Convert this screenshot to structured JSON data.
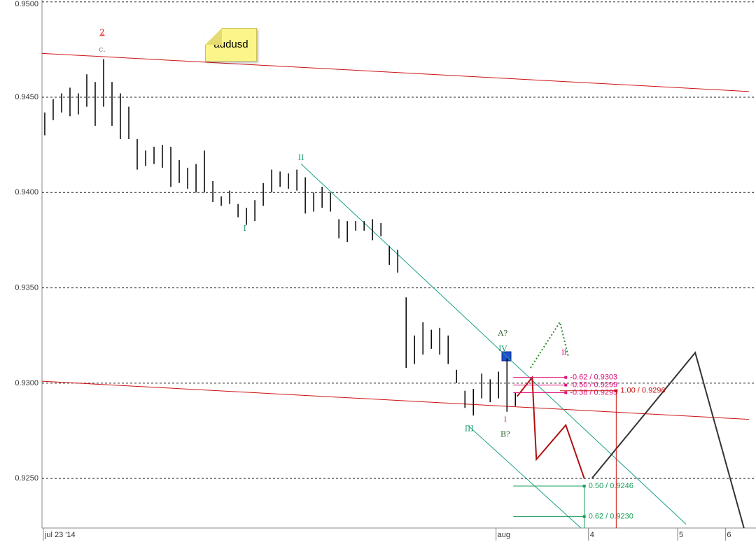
{
  "chart_data": {
    "type": "ohlc",
    "symbol": "audusd",
    "bar_color": "#000000",
    "high": [
      0.9442,
      0.9449,
      0.9452,
      0.9455,
      0.9452,
      0.9462,
      0.9458,
      0.947,
      0.9458,
      0.9452,
      0.9445,
      0.9428,
      0.9422,
      0.9424,
      0.9425,
      0.9424,
      0.9417,
      0.9413,
      0.9415,
      0.9422,
      0.9406,
      0.9398,
      0.9401,
      0.9394,
      0.9392,
      0.9396,
      0.9405,
      0.9412,
      0.9411,
      0.941,
      0.9412,
      0.9408,
      0.94,
      0.9403,
      0.94,
      0.9386,
      0.9385,
      0.9385,
      0.9385,
      0.9386,
      0.9384,
      0.9372,
      0.937,
      0.9345,
      0.9325,
      0.9332,
      0.9328,
      0.9329,
      0.9325,
      0.9307,
      0.9296,
      0.9297,
      0.9305,
      0.9302,
      0.9306,
      0.9313,
      0.9295
    ],
    "low": [
      0.943,
      0.9438,
      0.9442,
      0.944,
      0.9441,
      0.9445,
      0.9435,
      0.9445,
      0.9435,
      0.9428,
      0.9428,
      0.9412,
      0.9414,
      0.9415,
      0.9413,
      0.9403,
      0.9405,
      0.9402,
      0.94,
      0.94,
      0.9395,
      0.9393,
      0.9394,
      0.9387,
      0.9383,
      0.9385,
      0.9393,
      0.94,
      0.9403,
      0.9402,
      0.9401,
      0.9389,
      0.939,
      0.9392,
      0.939,
      0.9376,
      0.9374,
      0.938,
      0.938,
      0.9375,
      0.9377,
      0.9362,
      0.9358,
      0.9308,
      0.931,
      0.9315,
      0.9318,
      0.9315,
      0.931,
      0.93,
      0.9287,
      0.9283,
      0.9292,
      0.929,
      0.9292,
      0.9285,
      0.9288
    ],
    "xlim": [
      -0.33,
      83.8
    ],
    "xticks": [
      {
        "value": -0.17,
        "label": "jul 23 '14"
      },
      {
        "value": 53.7,
        "label": "aug"
      },
      {
        "value": 64.7,
        "label": "4"
      },
      {
        "value": 75.3,
        "label": "5"
      },
      {
        "value": 81,
        "label": "6"
      }
    ],
    "ylim": [
      0.9224,
      0.9501
    ],
    "yticks": [
      {
        "value": 0.925,
        "label": "0.9250"
      },
      {
        "value": 0.93,
        "label": "0.9300"
      },
      {
        "value": 0.935,
        "label": "0.9350"
      },
      {
        "value": 0.94,
        "label": "0.9400"
      },
      {
        "value": 0.945,
        "label": "0.9450"
      },
      {
        "value": 0.95,
        "label": "0.9500"
      }
    ],
    "grid": true,
    "lines": [
      {
        "color": "#cc1111",
        "x": [
          -0.33,
          83.8
        ],
        "y": [
          0.9473,
          0.9453
        ]
      },
      {
        "color": "#cc1111",
        "x": [
          -0.33,
          83.8
        ],
        "y": [
          0.9301,
          0.9281
        ]
      },
      {
        "color": "#1a9e8a",
        "x": [
          30.5,
          76.3
        ],
        "y": [
          0.9415,
          0.9226
        ]
      },
      {
        "color": "#1a9e8a",
        "x": [
          50.3,
          63.8
        ],
        "y": [
          0.9278,
          0.9224
        ]
      },
      {
        "color": "#b01010",
        "width": 2,
        "x": [
          56.2,
          58,
          58.5,
          62,
          64.2
        ],
        "y": [
          0.9293,
          0.9303,
          0.926,
          0.9278,
          0.925
        ]
      },
      {
        "color": "#333333",
        "width": 2,
        "x": [
          65.1,
          77.4,
          83.2
        ],
        "y": [
          0.925,
          0.9316,
          0.9224
        ]
      },
      {
        "color": "#2a8a2a",
        "width": 2,
        "dashed": true,
        "x": [
          57.8,
          61.3,
          62.3
        ],
        "y": [
          0.9308,
          0.9332,
          0.9314
        ]
      }
    ],
    "levels": [
      {
        "label": "-0.62 / 0.9303",
        "price": 0.9303,
        "x0": 55.75,
        "x1": 62,
        "color": "#e0107a"
      },
      {
        "label": "-0.50 / 0.9299",
        "price": 0.9299,
        "x0": 55.75,
        "x1": 62,
        "color": "#e0107a"
      },
      {
        "label": "-0.38 / 0.9295",
        "price": 0.9295,
        "x0": 55.75,
        "x1": 62,
        "color": "#e0107a"
      },
      {
        "label": "1.00 / 0.9296",
        "price": 0.9296,
        "x0": 61.3,
        "x1": 68,
        "color": "#cc1111",
        "drop": true
      },
      {
        "label": "0.50 / 0.9246",
        "price": 0.9246,
        "x0": 55.75,
        "x1": 64.2,
        "color": "#1a9e5a",
        "drop": true
      },
      {
        "label": "0.62 / 0.9230",
        "price": 0.923,
        "x0": 55.75,
        "x1": 64.2,
        "color": "#1a9e5a"
      }
    ],
    "annotations": [
      {
        "text": "2",
        "x": 6.83,
        "y": 0.9484,
        "color": "#dd0000"
      },
      {
        "text": "c.",
        "x": 6.83,
        "y": 0.9475,
        "color": "#777777"
      },
      {
        "text": "I",
        "x": 23.8,
        "y": 0.9381,
        "color": "#1a9e6a"
      },
      {
        "text": "II",
        "x": 30.5,
        "y": 0.9418,
        "color": "#1a9e6a"
      },
      {
        "text": "III",
        "x": 50.5,
        "y": 0.9276,
        "color": "#1a9e6a"
      },
      {
        "text": "IV",
        "x": 54.5,
        "y": 0.9318,
        "color": "#1a9e6a"
      },
      {
        "text": "A?",
        "x": 54.5,
        "y": 0.9326,
        "color": "#336633"
      },
      {
        "text": "B?",
        "x": 54.8,
        "y": 0.9273,
        "color": "#336633"
      },
      {
        "text": "i",
        "x": 54.8,
        "y": 0.9281,
        "color": "#dd1188"
      },
      {
        "text": "ii",
        "x": 61.8,
        "y": 0.9316,
        "color": "#dd1188"
      }
    ]
  }
}
